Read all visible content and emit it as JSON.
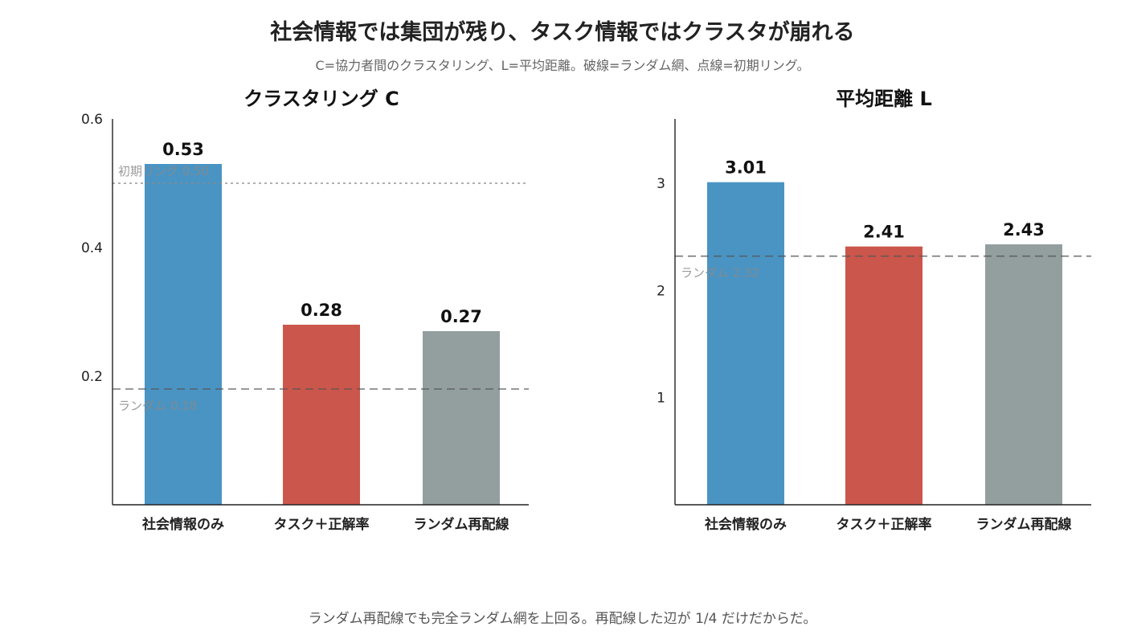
{
  "title": "社会情報では集団が残り、タスク情報ではクラスタが崩れる",
  "subtitle": "C=協力者間のクラスタリング、L=平均距離。破線=ランダム網、点線=初期リング。",
  "footnote": "ランダム再配線でも完全ランダム網を上回る。再配線した辺が 1/4 だけだからだ。",
  "colors": {
    "blue": "#4a94c4",
    "red": "#cb564b",
    "gray": "#939f9e"
  },
  "chart_data": [
    {
      "type": "bar",
      "title": "クラスタリング C",
      "categories": [
        "社会情報のみ",
        "タスク＋正解率",
        "ランダム再配線"
      ],
      "values": [
        0.53,
        0.28,
        0.27
      ],
      "value_labels": [
        "0.53",
        "0.28",
        "0.27"
      ],
      "bar_colors": [
        "#4a94c4",
        "#cb564b",
        "#939f9e"
      ],
      "ylim": [
        0,
        0.6
      ],
      "yticks": [
        0.2,
        0.4,
        0.6
      ],
      "ytick_labels": [
        "0.2",
        "0.4",
        "0.6"
      ],
      "reference_lines": [
        {
          "value": 0.5,
          "style": "dotted",
          "label": "初期リング 0.50"
        },
        {
          "value": 0.18,
          "style": "dashed",
          "label": "ランダム 0.18"
        }
      ],
      "grid": false
    },
    {
      "type": "bar",
      "title": "平均距離 L",
      "categories": [
        "社会情報のみ",
        "タスク＋正解率",
        "ランダム再配線"
      ],
      "values": [
        3.01,
        2.41,
        2.43
      ],
      "value_labels": [
        "3.01",
        "2.41",
        "2.43"
      ],
      "bar_colors": [
        "#4a94c4",
        "#cb564b",
        "#939f9e"
      ],
      "ylim": [
        0,
        3.6
      ],
      "yticks": [
        1,
        2,
        3
      ],
      "ytick_labels": [
        "1",
        "2",
        "3"
      ],
      "reference_lines": [
        {
          "value": 2.32,
          "style": "dashed",
          "label": "ランダム 2.32"
        }
      ],
      "grid": false
    }
  ]
}
